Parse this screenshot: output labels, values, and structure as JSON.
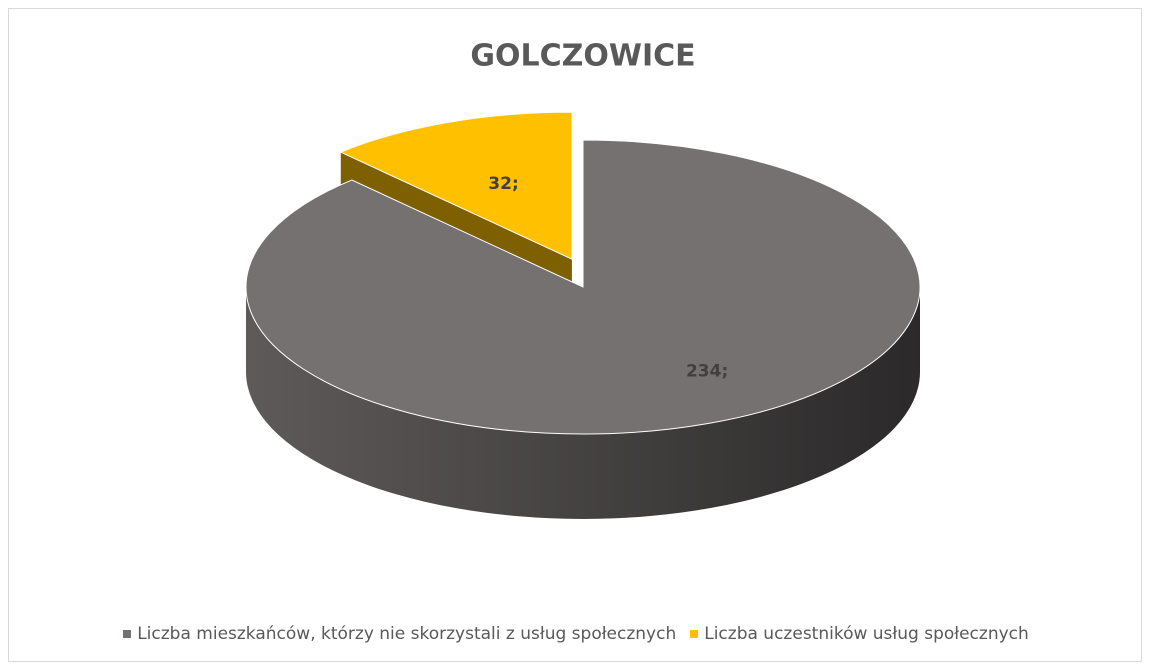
{
  "chart_data": {
    "type": "pie",
    "title": "GOLCZOWICE",
    "categories": [
      "Liczba mieszkańców, którzy nie skorzystali z usług społecznych",
      "Liczba uczestników usług społecznych"
    ],
    "values": [
      234,
      32
    ],
    "value_labels": [
      "234;",
      "32;"
    ],
    "colors": [
      "#767171",
      "#ffc000"
    ],
    "legend": "bottom"
  }
}
